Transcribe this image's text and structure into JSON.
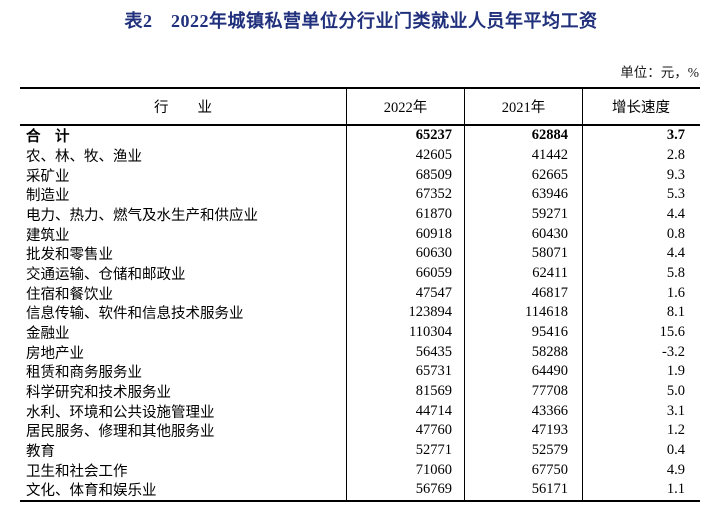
{
  "page": {
    "title": "表2　2022年城镇私营单位分行业门类就业人员年平均工资",
    "unit_note": "单位：元，%"
  },
  "colors": {
    "title_navy": "#20307c",
    "text": "#000000",
    "border": "#000000",
    "background": "#ffffff"
  },
  "table": {
    "columns": {
      "industry": "行　　业",
      "y2022": "2022年",
      "y2021": "2021年",
      "growth": "增长速度"
    },
    "rows": [
      {
        "industry": "合　计",
        "y2022": "65237",
        "y2021": "62884",
        "growth": "3.7",
        "bold": true
      },
      {
        "industry": "农、林、牧、渔业",
        "y2022": "42605",
        "y2021": "41442",
        "growth": "2.8",
        "bold": false
      },
      {
        "industry": "采矿业",
        "y2022": "68509",
        "y2021": "62665",
        "growth": "9.3",
        "bold": false
      },
      {
        "industry": "制造业",
        "y2022": "67352",
        "y2021": "63946",
        "growth": "5.3",
        "bold": false
      },
      {
        "industry": "电力、热力、燃气及水生产和供应业",
        "y2022": "61870",
        "y2021": "59271",
        "growth": "4.4",
        "bold": false
      },
      {
        "industry": "建筑业",
        "y2022": "60918",
        "y2021": "60430",
        "growth": "0.8",
        "bold": false
      },
      {
        "industry": "批发和零售业",
        "y2022": "60630",
        "y2021": "58071",
        "growth": "4.4",
        "bold": false
      },
      {
        "industry": "交通运输、仓储和邮政业",
        "y2022": "66059",
        "y2021": "62411",
        "growth": "5.8",
        "bold": false
      },
      {
        "industry": "住宿和餐饮业",
        "y2022": "47547",
        "y2021": "46817",
        "growth": "1.6",
        "bold": false
      },
      {
        "industry": "信息传输、软件和信息技术服务业",
        "y2022": "123894",
        "y2021": "114618",
        "growth": "8.1",
        "bold": false
      },
      {
        "industry": "金融业",
        "y2022": "110304",
        "y2021": "95416",
        "growth": "15.6",
        "bold": false
      },
      {
        "industry": "房地产业",
        "y2022": "56435",
        "y2021": "58288",
        "growth": "-3.2",
        "bold": false
      },
      {
        "industry": "租赁和商务服务业",
        "y2022": "65731",
        "y2021": "64490",
        "growth": "1.9",
        "bold": false
      },
      {
        "industry": "科学研究和技术服务业",
        "y2022": "81569",
        "y2021": "77708",
        "growth": "5.0",
        "bold": false
      },
      {
        "industry": "水利、环境和公共设施管理业",
        "y2022": "44714",
        "y2021": "43366",
        "growth": "3.1",
        "bold": false
      },
      {
        "industry": "居民服务、修理和其他服务业",
        "y2022": "47760",
        "y2021": "47193",
        "growth": "1.2",
        "bold": false
      },
      {
        "industry": "教育",
        "y2022": "52771",
        "y2021": "52579",
        "growth": "0.4",
        "bold": false
      },
      {
        "industry": "卫生和社会工作",
        "y2022": "71060",
        "y2021": "67750",
        "growth": "4.9",
        "bold": false
      },
      {
        "industry": "文化、体育和娱乐业",
        "y2022": "56769",
        "y2021": "56171",
        "growth": "1.1",
        "bold": false
      }
    ]
  }
}
